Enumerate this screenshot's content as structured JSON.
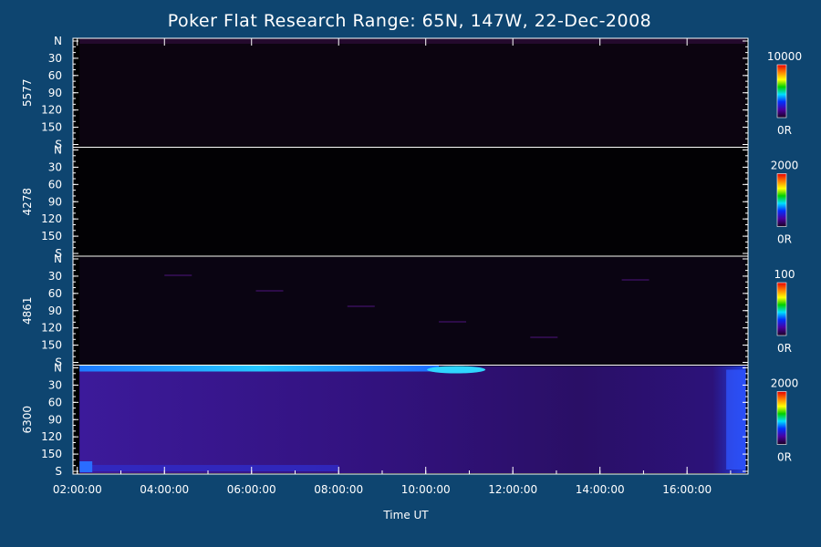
{
  "chart_data": {
    "type": "heatmap",
    "title": "Poker Flat Research Range: 65N, 147W, 22-Dec-2008",
    "xlabel": "Time UT",
    "x_ticks": [
      "02:00:00",
      "04:00:00",
      "06:00:00",
      "08:00:00",
      "10:00:00",
      "12:00:00",
      "14:00:00",
      "16:00:00"
    ],
    "x_range_hours": [
      1.9,
      17.4
    ],
    "y_ticks": [
      "N",
      "30",
      "60",
      "90",
      "120",
      "150",
      "S"
    ],
    "panels": [
      {
        "label": "5577",
        "scale_max": "10000",
        "scale_min": "0R",
        "level": 0.05
      },
      {
        "label": "4278",
        "scale_max": "2000",
        "scale_min": "0R",
        "level": 0.01
      },
      {
        "label": "4861",
        "scale_max": "100",
        "scale_min": "0R",
        "level": 0.06
      },
      {
        "label": "6300",
        "scale_max": "2000",
        "scale_min": "0R",
        "level": 0.3
      }
    ],
    "colorbar_colors": [
      "#e60000",
      "#ff7f00",
      "#ffff00",
      "#00d000",
      "#00e0ff",
      "#0030ff",
      "#4a00a0",
      "#1a0020"
    ]
  }
}
